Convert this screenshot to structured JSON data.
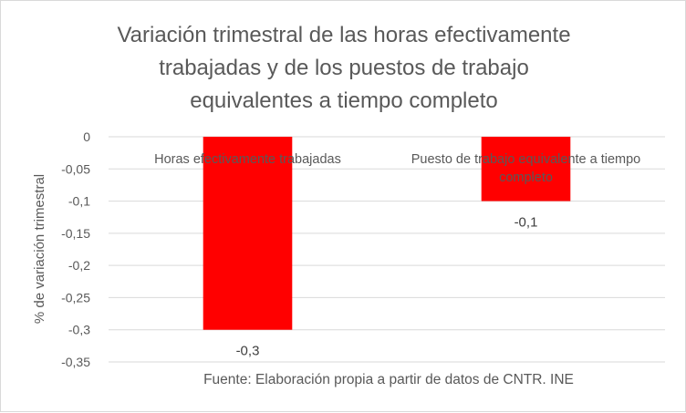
{
  "chart_data": {
    "type": "bar",
    "title": "Variación trimestral de las horas efectivamente\ntrabajadas y de los puestos de trabajo\nequivalentes a tiempo completo",
    "ylabel": "% de variación trimestral",
    "xlabel": "",
    "categories": [
      "Horas efectivamente trabajadas",
      "Puesto de trabajo equivalente a tiempo completo"
    ],
    "category_lines": [
      [
        "Horas efectivamente trabajadas"
      ],
      [
        "Puesto de trabajo equivalente a tiempo",
        "completo"
      ]
    ],
    "values": [
      -0.3,
      -0.1
    ],
    "data_labels": [
      "-0,3",
      "-0,1"
    ],
    "ylim": [
      -0.35,
      0
    ],
    "yticks": [
      0,
      -0.05,
      -0.1,
      -0.15,
      -0.2,
      -0.25,
      -0.3,
      -0.35
    ],
    "ytick_labels": [
      "0",
      "-0,05",
      "-0,1",
      "-0,15",
      "-0,2",
      "-0,25",
      "-0,3",
      "-0,35"
    ],
    "grid": true,
    "bar_color": "#ff0000",
    "source": "Fuente: Elaboración propia a partir de datos de CNTR. INE"
  }
}
